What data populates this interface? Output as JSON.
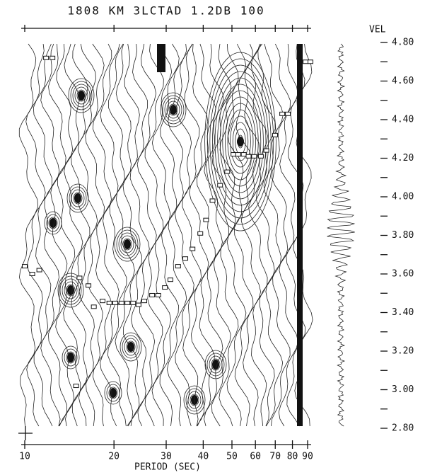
{
  "chart_data": {
    "type": "scatter",
    "title": "1808 KM 3LCTAD 1.2DB 100",
    "x_label": "PERIOD (SEC)",
    "y_label": "VEL",
    "xscale": "log",
    "xlim": [
      10,
      90
    ],
    "xticks": [
      10,
      20,
      30,
      40,
      50,
      60,
      70,
      80,
      90
    ],
    "ylim": [
      2.8,
      4.8
    ],
    "yticks": [
      {
        "value": 4.8,
        "label": "4.80"
      },
      {
        "value": 4.6,
        "label": "4.60"
      },
      {
        "value": 4.4,
        "label": "4.40"
      },
      {
        "value": 4.2,
        "label": "4.20"
      },
      {
        "value": 4,
        "label": "4.00"
      },
      {
        "value": 3.8,
        "label": "3.80"
      },
      {
        "value": 3.6,
        "label": "3.60"
      },
      {
        "value": 3.4,
        "label": "3.40"
      },
      {
        "value": 3.2,
        "label": "3.20"
      },
      {
        "value": 3,
        "label": "3.00"
      },
      {
        "value": 2.8,
        "label": "2.80"
      }
    ],
    "yminor": [
      4.7,
      4.5,
      4.3,
      4.1,
      3.9,
      3.7,
      3.5,
      3.3,
      3.1,
      2.9
    ],
    "x": [
      10,
      10.6,
      11.2,
      11.8,
      12.4,
      14.9,
      15.3,
      16.4,
      17.1,
      18.3,
      19.3,
      20.2,
      21.2,
      22.2,
      23.2,
      24.2,
      25.3,
      26.9,
      28.2,
      29.7,
      31.0,
      32.9,
      34.8,
      36.8,
      39.1,
      40.9,
      43.0,
      45.6,
      48.2,
      50.6,
      52.5,
      54.8,
      56.9,
      59.4,
      62.6,
      65.3,
      69.9,
      73.9,
      77.2,
      88.6,
      92
    ],
    "values": [
      3.64,
      3.6,
      3.62,
      4.72,
      4.72,
      3.02,
      3.58,
      3.54,
      3.43,
      3.46,
      3.45,
      3.45,
      3.45,
      3.45,
      3.45,
      3.44,
      3.46,
      3.49,
      3.49,
      3.53,
      3.57,
      3.64,
      3.68,
      3.73,
      3.81,
      3.88,
      3.98,
      4.06,
      4.13,
      4.22,
      4.22,
      4.22,
      4.21,
      4.21,
      4.21,
      4.24,
      4.32,
      4.43,
      4.43,
      4.7,
      4.7
    ],
    "color": "#111111"
  }
}
